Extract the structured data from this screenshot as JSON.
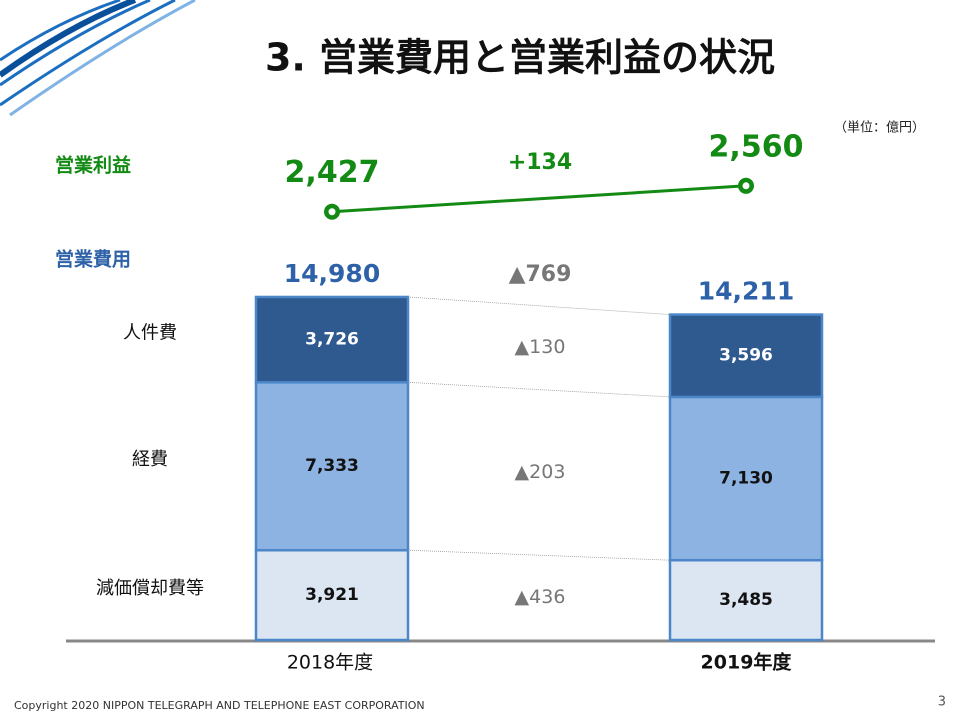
{
  "title": "3. 営業費用と営業利益の状況",
  "unit": "（単位：億円）",
  "copyright": "Copyright 2020 NIPPON TELEGRAPH AND TELEPHONE EAST CORPORATION",
  "page_number": "3",
  "chart_data": {
    "type": "bar",
    "stacked": true,
    "categories": [
      "2018年度",
      "2019年度"
    ],
    "series": [
      {
        "name": "減価償却費等",
        "color": "#dce6f2",
        "values": [
          3921,
          3485
        ],
        "value_labels": [
          "3,921",
          "3,485"
        ],
        "change": {
          "value": -436,
          "label": "▲436"
        }
      },
      {
        "name": "経費",
        "color": "#8db3e2",
        "values": [
          7333,
          7130
        ],
        "value_labels": [
          "7,333",
          "7,130"
        ],
        "change": {
          "value": -203,
          "label": "▲203"
        }
      },
      {
        "name": "人件費",
        "color": "#2f5a8f",
        "values": [
          3726,
          3596
        ],
        "value_labels": [
          "3,726",
          "3,596"
        ],
        "change": {
          "value": -130,
          "label": "▲130"
        }
      }
    ],
    "totals": {
      "name": "営業費用",
      "color": "#2e62a8",
      "values": [
        14980,
        14211
      ],
      "value_labels": [
        "14,980",
        "14,211"
      ],
      "change": {
        "value": -769,
        "label": "▲769"
      }
    },
    "profit": {
      "name": "営業利益",
      "color": "#138a13",
      "values": [
        2427,
        2560
      ],
      "value_labels": [
        "2,427",
        "2,560"
      ],
      "change": {
        "value": 134,
        "label": "+134"
      }
    }
  }
}
